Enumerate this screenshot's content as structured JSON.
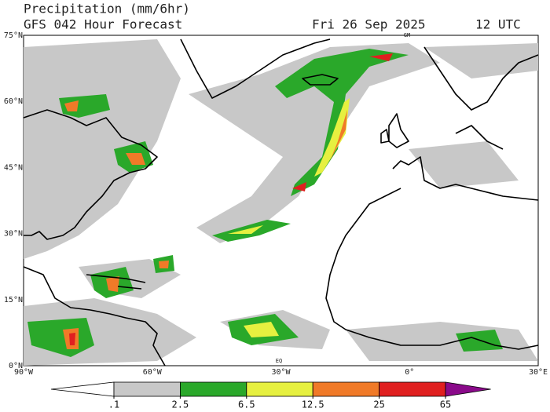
{
  "header": {
    "title": "Precipitation (mm/6hr)",
    "subtitle": "GFS 042 Hour Forecast",
    "date": "Fri 26 Sep 2025",
    "time": "12 UTC"
  },
  "map": {
    "lat_labels": [
      "75°N",
      "60°N",
      "45°N",
      "30°N",
      "15°N",
      "0°N"
    ],
    "lon_labels": [
      "90°W",
      "60°W",
      "30°W",
      "0°",
      "30°E"
    ],
    "prime_meridian_mark": "GM",
    "equator_mark": "EQ"
  },
  "colorbar": {
    "levels": [
      {
        "value": 0.1,
        "label": ".1"
      },
      2.5,
      6.5,
      12.5,
      25,
      65
    ],
    "colors": [
      "#ffffff",
      "#c8c8c8",
      "#2aa82a",
      "#e6f040",
      "#f07a28",
      "#e02020",
      "#8a0a8a"
    ]
  }
}
